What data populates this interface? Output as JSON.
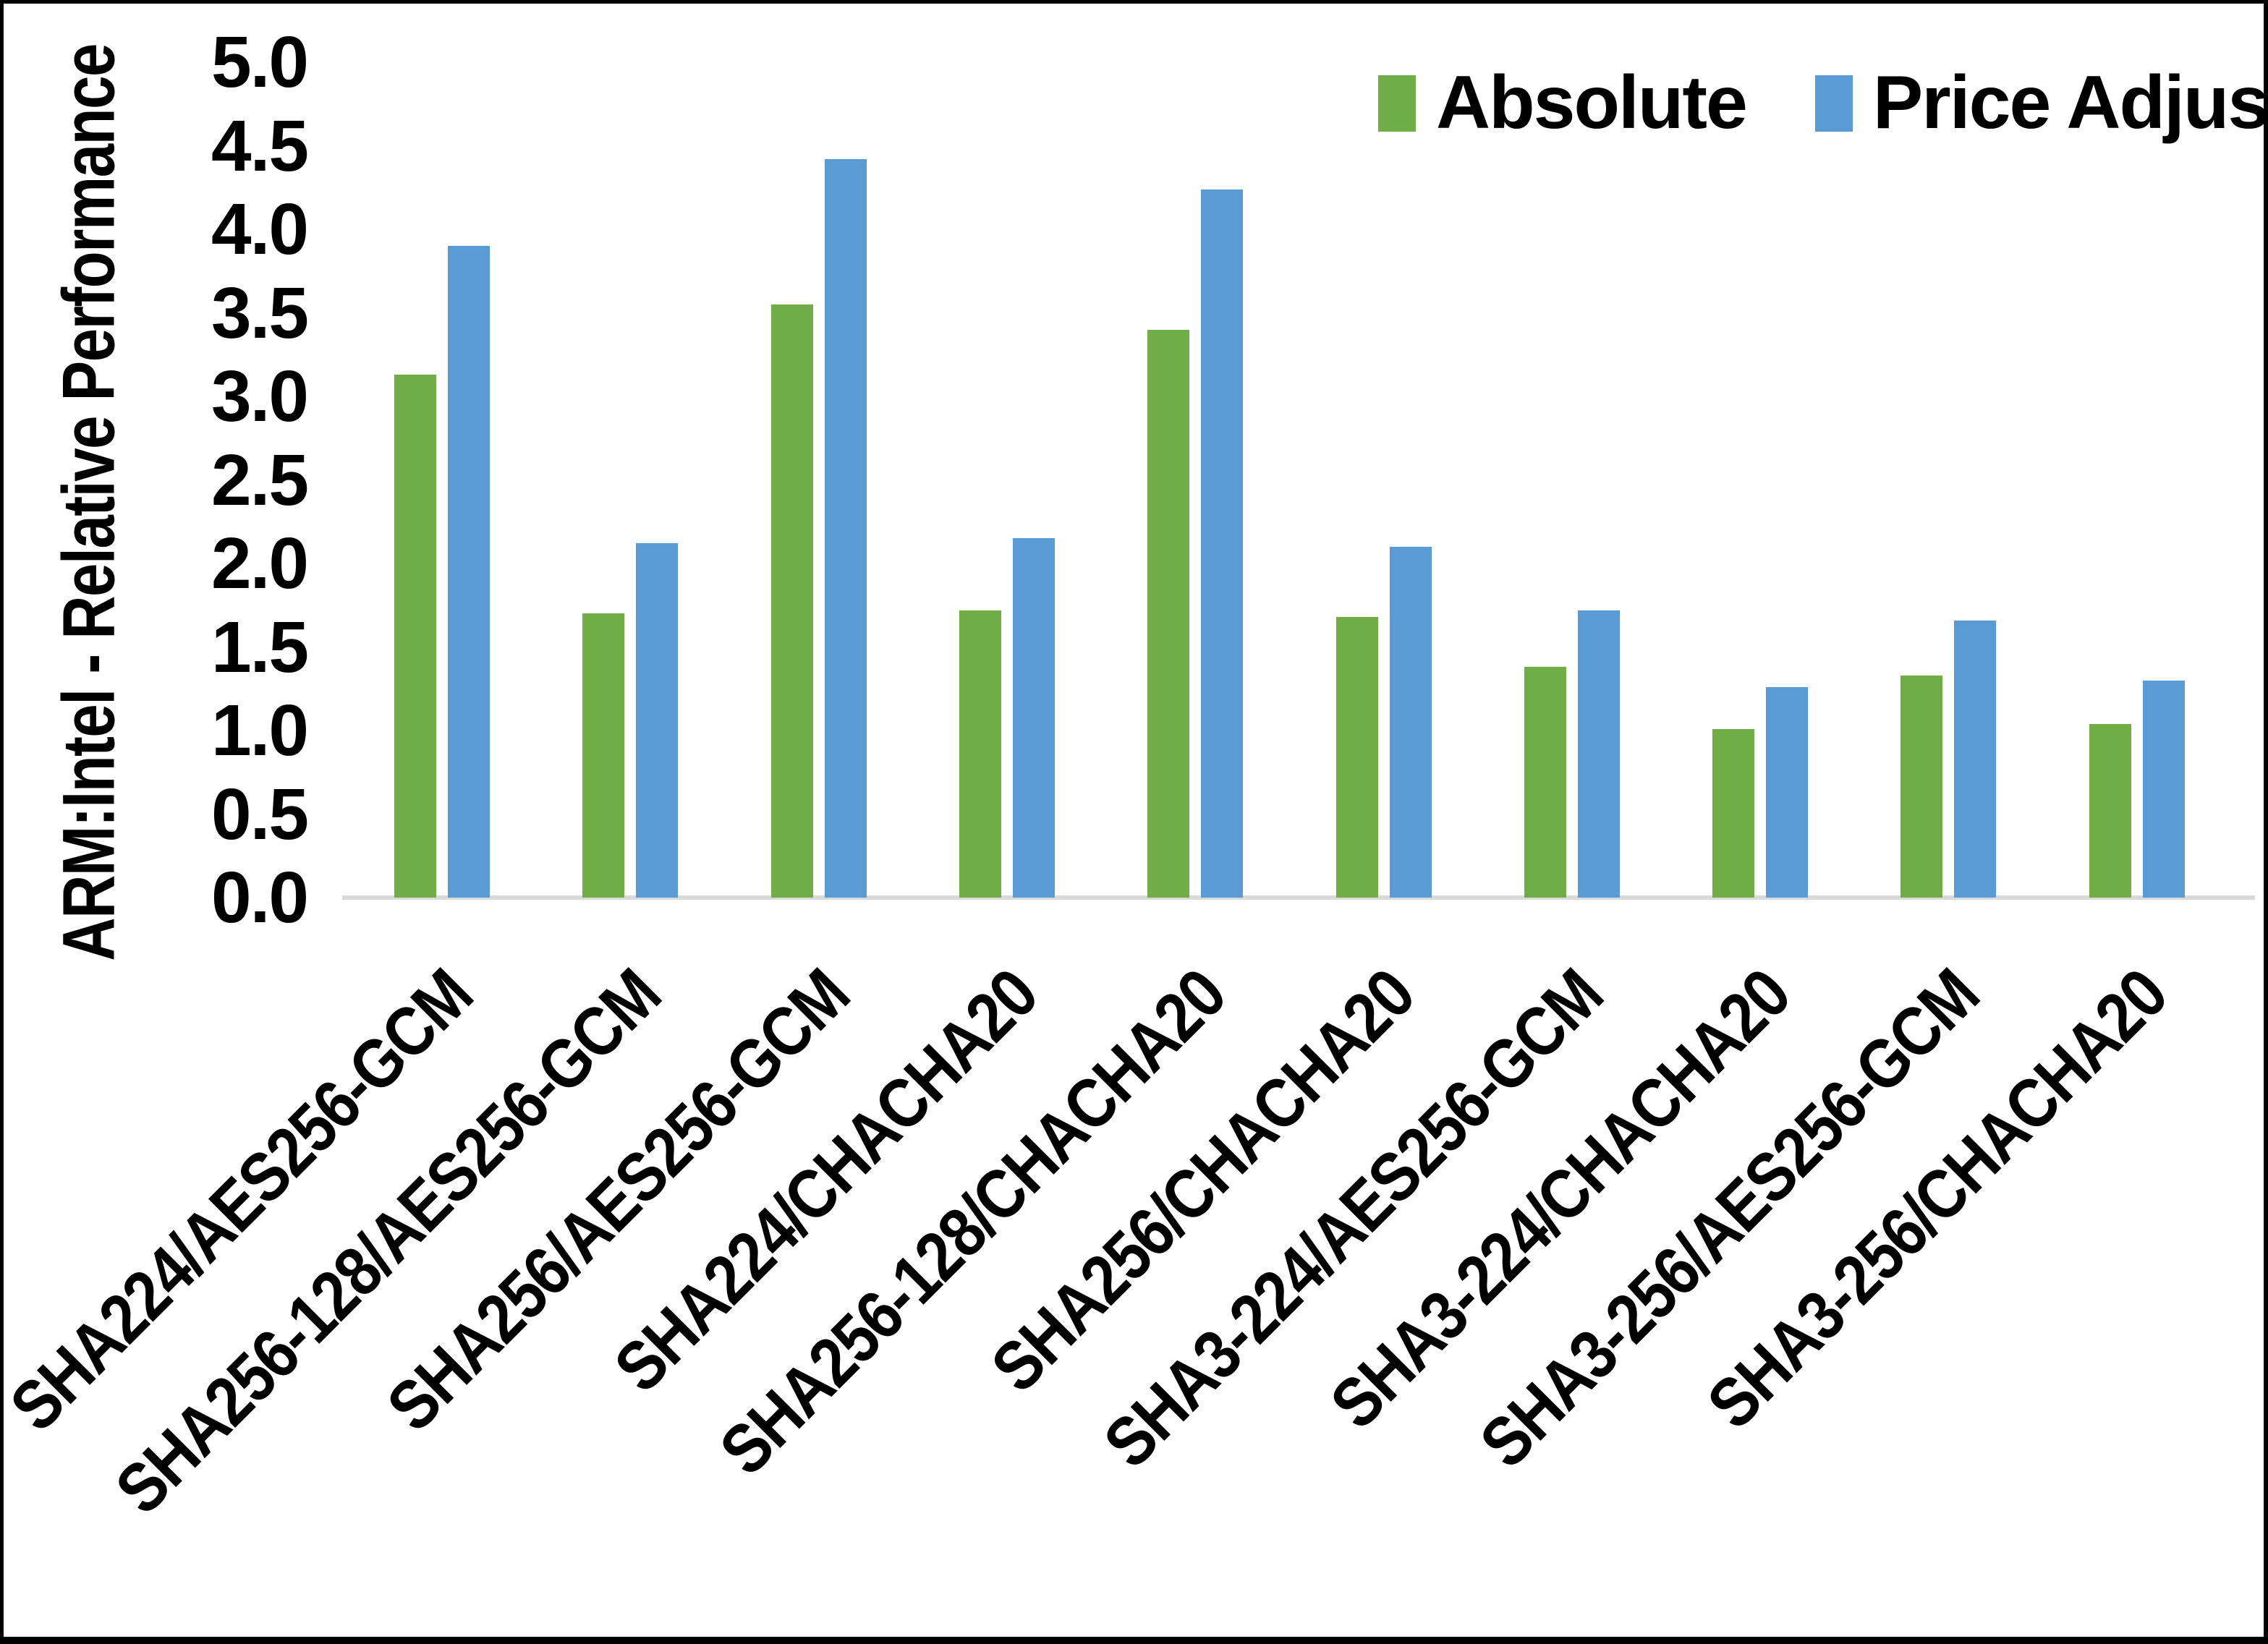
{
  "chart_data": {
    "type": "bar",
    "title": "",
    "ylabel": "ARM:Intel - Relative Performance",
    "xlabel": "",
    "ylim": [
      0.0,
      5.0
    ],
    "ytick_step": 0.5,
    "ytick_labels": [
      "0.0",
      "0.5",
      "1.0",
      "1.5",
      "2.0",
      "2.5",
      "3.0",
      "3.5",
      "4.0",
      "4.5",
      "5.0"
    ],
    "grid": "none",
    "legend_position": "top-right",
    "background": "#FFFFFF",
    "text_color": "#000000",
    "axis_line_color": "#D9D9D9",
    "categories": [
      "SHA224/AES256-GCM",
      "SHA256-128/AES256-GCM",
      "SHA256/AES256-GCM",
      "SHA224/CHACHA20",
      "SHA256-128/CHACHA20",
      "SHA256/CHACHA20",
      "SHA3-224/AES256-GCM",
      "SHA3-224/CHACHA20",
      "SHA3-256/AES256-GCM",
      "SHA3-256/CHACHA20"
    ],
    "series": [
      {
        "name": "Absolute",
        "color": "#70AD47",
        "values": [
          3.13,
          1.7,
          3.55,
          1.72,
          3.4,
          1.68,
          1.38,
          1.01,
          1.33,
          1.04
        ]
      },
      {
        "name": "Price Adjusted",
        "color": "#5B9BD5",
        "values": [
          3.9,
          2.12,
          4.42,
          2.15,
          4.24,
          2.1,
          1.72,
          1.26,
          1.66,
          1.3
        ]
      }
    ]
  }
}
